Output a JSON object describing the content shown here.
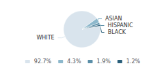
{
  "chart_data": {
    "type": "pie",
    "categories": [
      "WHITE",
      "ASIAN",
      "HISPANIC",
      "BLACK"
    ],
    "values": [
      92.7,
      4.3,
      1.9,
      1.2
    ],
    "value_labels": [
      "92.7%",
      "4.3%",
      "1.9%",
      "1.2%"
    ],
    "colors": [
      "#d9e4ed",
      "#8db8cc",
      "#5b8fa8",
      "#2a5f7a"
    ],
    "legend": "bottom"
  }
}
